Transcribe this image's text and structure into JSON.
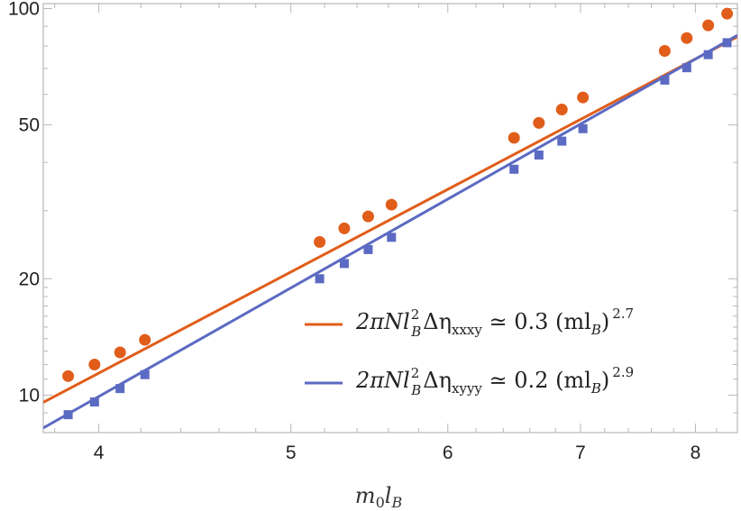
{
  "chart_data": {
    "type": "scatter",
    "xscale": "log",
    "yscale": "log",
    "xlim": [
      3.75,
      8.4
    ],
    "ylim": [
      8.0,
      103
    ],
    "xticks_major": [
      4,
      5,
      6,
      7,
      8
    ],
    "yticks_major": [
      10,
      20,
      50,
      100
    ],
    "xlabel": "m0lB",
    "ylabel": "",
    "grid": false,
    "legend": "right",
    "series": [
      {
        "name": "2πNlB²Δηxxxy ≃ 0.3 (mlB)^2.7",
        "color": "#e05d1a",
        "marker": "circle",
        "x": [
          3.86,
          3.98,
          4.1,
          4.22,
          5.17,
          5.32,
          5.47,
          5.62,
          6.48,
          6.67,
          6.85,
          7.02,
          7.72,
          7.92,
          8.12,
          8.3
        ],
        "y": [
          11.2,
          12.0,
          12.9,
          13.9,
          24.9,
          27.0,
          29.0,
          31.1,
          46.3,
          50.6,
          54.8,
          58.9,
          77.7,
          83.9,
          90.5,
          97.0
        ],
        "fit": {
          "coef": 0.27,
          "exp": 2.7
        }
      },
      {
        "name": "2πNlB²Δηxyyy ≃ 0.2 (mlB)^2.9",
        "color": "#5b6ac2",
        "marker": "square",
        "x": [
          3.86,
          3.98,
          4.1,
          4.22,
          5.17,
          5.32,
          5.47,
          5.62,
          6.48,
          6.67,
          6.85,
          7.02,
          7.72,
          7.92,
          8.12,
          8.3
        ],
        "y": [
          8.9,
          9.6,
          10.4,
          11.3,
          20.0,
          21.9,
          23.8,
          25.6,
          38.4,
          41.8,
          45.4,
          48.9,
          65.3,
          70.3,
          76.0,
          81.6
        ],
        "fit": {
          "coef": 0.178,
          "exp": 2.9
        }
      }
    ],
    "legend_entries": [
      {
        "lhs": "2πNl",
        "sup": "2",
        "sub1": "B",
        "eta": "Δη",
        "sub2": "xxxy",
        "rel": " ≃ 0.3 (ml",
        "sub3": "B",
        "close": ")",
        "pow": "2.7"
      },
      {
        "lhs": "2πNl",
        "sup": "2",
        "sub1": "B",
        "eta": "Δη",
        "sub2": "xyyy",
        "rel": " ≃ 0.2 (ml",
        "sub3": "B",
        "close": ")",
        "pow": "2.9"
      }
    ]
  }
}
